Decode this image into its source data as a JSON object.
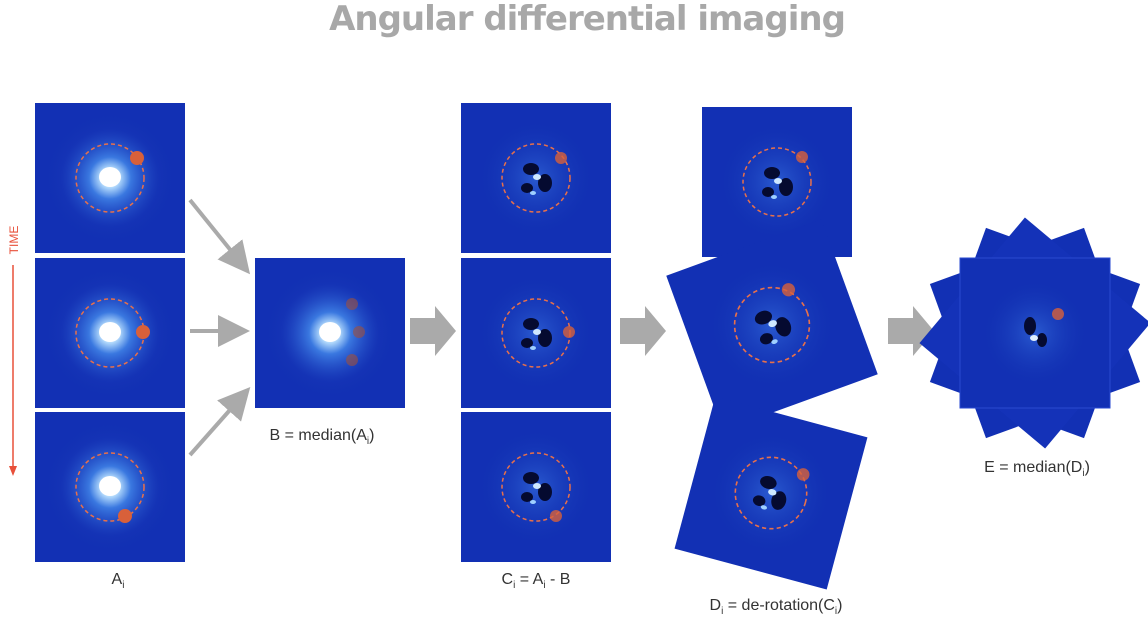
{
  "title": "Angular differential imaging",
  "time_label": "TIME",
  "labels": {
    "a": [
      "A",
      "i"
    ],
    "b": [
      "B = median(A",
      "i",
      ")"
    ],
    "c": [
      "C",
      "i",
      " = A",
      "i",
      " - B"
    ],
    "d": [
      "D",
      "i",
      " = de-rotation(C",
      "i",
      ")"
    ],
    "e": [
      "E = median(D",
      "i",
      ")"
    ]
  }
}
